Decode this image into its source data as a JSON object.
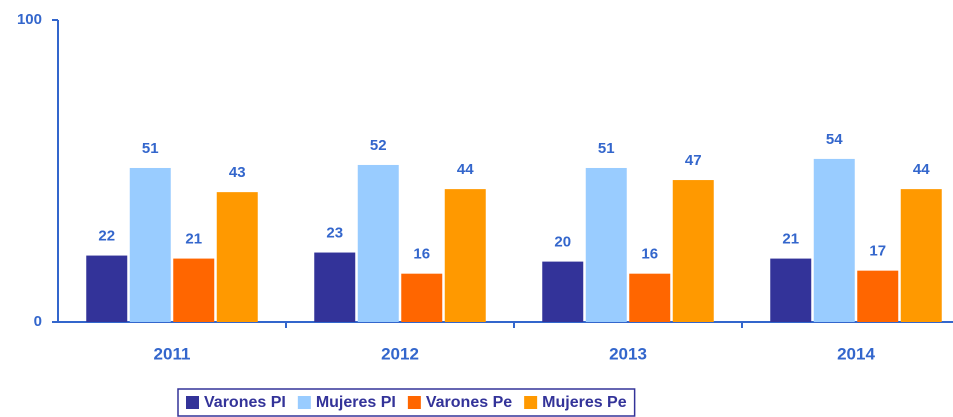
{
  "chart_data": {
    "type": "bar",
    "categories": [
      "2011",
      "2012",
      "2013",
      "2014"
    ],
    "series": [
      {
        "name": "Varones PI",
        "color": "#333399",
        "values": [
          22,
          23,
          20,
          21
        ]
      },
      {
        "name": "Mujeres PI",
        "color": "#99ccff",
        "values": [
          51,
          52,
          51,
          54
        ]
      },
      {
        "name": "Varones Pe",
        "color": "#ff6600",
        "values": [
          21,
          16,
          16,
          17
        ]
      },
      {
        "name": "Mujeres Pe",
        "color": "#ff9900",
        "values": [
          43,
          44,
          47,
          44
        ]
      }
    ],
    "ylim": [
      0,
      100
    ],
    "yticks": [
      0,
      100
    ],
    "grid": false,
    "legend": "bottom"
  }
}
